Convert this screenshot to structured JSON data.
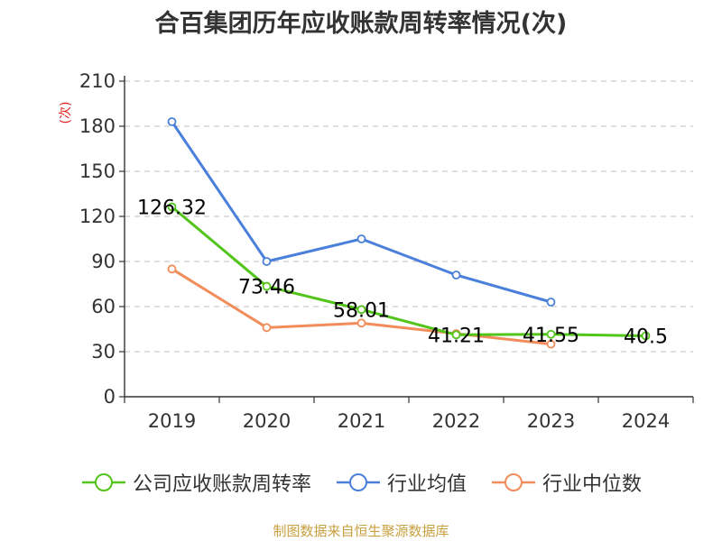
{
  "chart_data": {
    "type": "line",
    "title": "合百集团历年应收账款周转率情况(次)",
    "ylabel": "(次)",
    "xlabel": "",
    "categories": [
      "2019",
      "2020",
      "2021",
      "2022",
      "2023",
      "2024"
    ],
    "ylim": [
      0,
      210
    ],
    "yticks": [
      0,
      30,
      60,
      90,
      120,
      150,
      180,
      210
    ],
    "grid": true,
    "legend_position": "bottom",
    "series": [
      {
        "name": "公司应收账款周转率",
        "color": "#52c41a",
        "values": [
          126.32,
          73.46,
          58.01,
          41.21,
          41.55,
          40.5
        ],
        "labeled": true
      },
      {
        "name": "行业均值",
        "color": "#4a7fdb",
        "values": [
          183,
          90,
          105,
          81,
          63,
          null
        ],
        "labeled": false
      },
      {
        "name": "行业中位数",
        "color": "#f28c5a",
        "values": [
          85,
          46,
          49,
          42,
          35,
          null
        ],
        "labeled": false
      }
    ],
    "data_labels": [
      "126.32",
      "73.46",
      "58.01",
      "41.21",
      "41.55",
      "40.5"
    ]
  },
  "source": "制图数据来自恒生聚源数据库"
}
